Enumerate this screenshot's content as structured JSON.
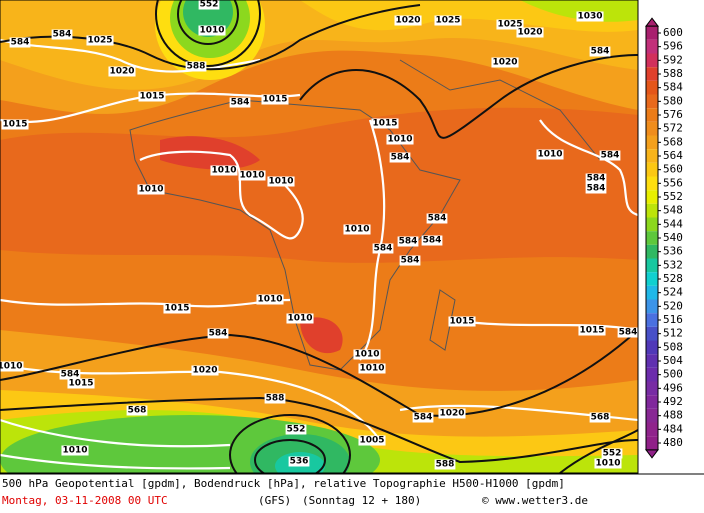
{
  "map": {
    "contour_labels": [
      "552",
      "584",
      "584",
      "1025",
      "1020",
      "1015",
      "1015",
      "588",
      "584",
      "1015",
      "1010",
      "1020",
      "1025",
      "1025",
      "1020",
      "1030",
      "584",
      "1020",
      "1015",
      "1010",
      "584",
      "1010",
      "584",
      "584",
      "584",
      "1010",
      "1010",
      "1010",
      "1010",
      "1010",
      "584",
      "584",
      "584",
      "584",
      "584",
      "1015",
      "1010",
      "1010",
      "584",
      "1015",
      "1015",
      "584",
      "1010",
      "1010",
      "1020",
      "584",
      "1015",
      "1010",
      "568",
      "588",
      "584",
      "1020",
      "552",
      "1010",
      "1005",
      "588",
      "536",
      "568",
      "552",
      "1010"
    ]
  },
  "colorbar": {
    "ticks": [
      600,
      596,
      592,
      588,
      584,
      580,
      576,
      572,
      568,
      564,
      560,
      556,
      552,
      548,
      544,
      540,
      536,
      532,
      528,
      524,
      520,
      516,
      512,
      508,
      504,
      500,
      496,
      492,
      488,
      484,
      480
    ],
    "colors": [
      "#a8206e",
      "#c2307a",
      "#d2305c",
      "#e0402c",
      "#e4561a",
      "#e8691c",
      "#ec7c18",
      "#f08d1c",
      "#f4a01c",
      "#f8b41a",
      "#fcc814",
      "#fede10",
      "#e8ef00",
      "#bce40a",
      "#8cd81e",
      "#5ec83c",
      "#30b862",
      "#18c8a0",
      "#10d0d0",
      "#20b8e8",
      "#3c94e8",
      "#4a70e0",
      "#4850c8",
      "#5038b8",
      "#6030b0",
      "#6c2cac",
      "#782ca4",
      "#80289c",
      "#882894",
      "#90248c",
      "#902088"
    ]
  },
  "footer": {
    "line1": "500 hPa Geopotential [gpdm], Bodendruck [hPa], relative Topographie H500-H1000 [gpdm]",
    "date": "Montag, 03-11-2008  00 UTC",
    "model": "(GFS)",
    "run": "(Sonntag 12 + 180)",
    "source": "© www.wetter3.de"
  }
}
